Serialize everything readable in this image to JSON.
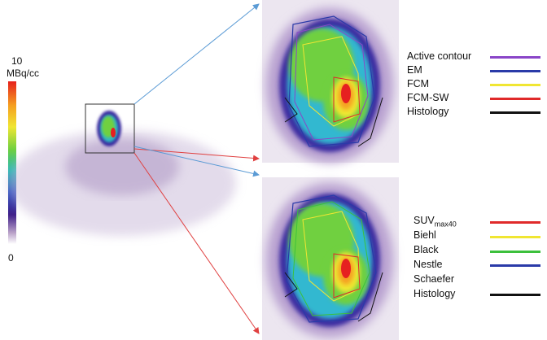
{
  "colorbar": {
    "max_label": "10",
    "unit": "MBq/cc",
    "min_label": "0"
  },
  "legend_top": {
    "items": [
      {
        "label": "Active contour",
        "color": "#8a45c8"
      },
      {
        "label": "EM",
        "color": "#2a3aa8"
      },
      {
        "label": "FCM",
        "color": "#f0e632"
      },
      {
        "label": "FCM-SW",
        "color": "#e02a2a"
      },
      {
        "label": "Histology",
        "color": "#111111"
      }
    ]
  },
  "legend_bottom": {
    "items": [
      {
        "label": "SUV",
        "sub": "max40",
        "color": "#e02a2a"
      },
      {
        "label": "Biehl",
        "color": "#f0e632"
      },
      {
        "label": "Black",
        "color": "#3cc03c"
      },
      {
        "label": "Nestle",
        "color": "#2a3aa8"
      },
      {
        "label": "Schaefer",
        "color": "#ffffff"
      },
      {
        "label": "Histology",
        "color": "#111111"
      }
    ]
  },
  "arrow_colors": {
    "blue": "#5b9bd5",
    "red": "#e04040"
  }
}
